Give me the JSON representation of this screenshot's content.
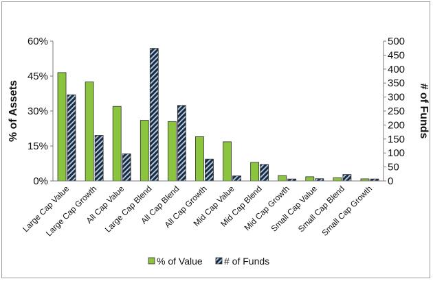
{
  "chart_data": {
    "type": "bar",
    "categories": [
      "Large Cap Value",
      "Large Cap Growth",
      "All Cap Value",
      "Large Cap Blend",
      "All Cap Blend",
      "All Cap Growth",
      "Mid Cap Value",
      "Mid Cap Blend",
      "Mid Cap Growth",
      "Small Cap Value",
      "Small Cap Blend",
      "Small Cap Growth"
    ],
    "series": [
      {
        "name": "% of Value",
        "axis": "left",
        "color": "#8bc43f",
        "values": [
          46.5,
          42.5,
          32,
          26,
          25.5,
          19,
          16.8,
          8,
          2.3,
          1.8,
          1.4,
          0.9
        ]
      },
      {
        "name": "# of Funds",
        "axis": "right",
        "color": "#1e2a38",
        "hatch_color": "#a9c8e8",
        "values": [
          308,
          163,
          97,
          474,
          270,
          78,
          18,
          59,
          7,
          8,
          23,
          7
        ]
      }
    ],
    "ylabel": "% of Assets",
    "y2label": "# of Funds",
    "ylim": [
      0,
      60
    ],
    "y2lim": [
      0,
      500
    ],
    "yticks": [
      "0%",
      "15%",
      "30%",
      "45%",
      "60%"
    ],
    "y2ticks": [
      "0",
      "50",
      "100",
      "150",
      "200",
      "250",
      "300",
      "350",
      "400",
      "450",
      "500"
    ],
    "legend_position": "bottom",
    "grid": false
  }
}
